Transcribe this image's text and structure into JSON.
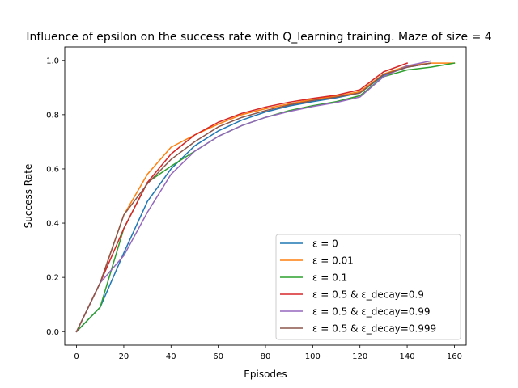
{
  "chart_data": {
    "type": "line",
    "title": "Influence of epsilon on the success rate with Q_learning training. Maze of size = 4",
    "xlabel": "Episodes",
    "ylabel": "Success Rate",
    "xlim": [
      -5,
      165
    ],
    "ylim": [
      -0.05,
      1.05
    ],
    "xticks": [
      0,
      20,
      40,
      60,
      80,
      100,
      120,
      140,
      160
    ],
    "yticks": [
      0.0,
      0.2,
      0.4,
      0.6,
      0.8,
      1.0
    ],
    "xtick_labels": [
      "0",
      "20",
      "40",
      "60",
      "80",
      "100",
      "120",
      "140",
      "160"
    ],
    "ytick_labels": [
      "0.0",
      "0.2",
      "0.4",
      "0.6",
      "0.8",
      "1.0"
    ],
    "grid": false,
    "legend_position": "lower-right",
    "series": [
      {
        "name": "ε = 0",
        "color": "#1f77b4",
        "x": [
          0,
          10,
          20,
          30,
          40,
          50,
          60,
          70,
          80,
          90,
          100,
          110,
          120,
          130,
          140,
          150
        ],
        "y": [
          0.0,
          0.09,
          0.29,
          0.48,
          0.6,
          0.685,
          0.74,
          0.78,
          0.81,
          0.832,
          0.848,
          0.862,
          0.88,
          0.945,
          0.975,
          0.99
        ]
      },
      {
        "name": "ε = 0.01",
        "color": "#ff7f0e",
        "x": [
          0,
          10,
          20,
          30,
          40,
          50,
          60,
          70,
          80,
          90,
          100,
          110,
          120,
          130,
          140,
          150,
          160
        ],
        "y": [
          0.0,
          0.18,
          0.43,
          0.58,
          0.68,
          0.725,
          0.765,
          0.8,
          0.822,
          0.84,
          0.856,
          0.868,
          0.885,
          0.95,
          0.98,
          0.99,
          0.99
        ]
      },
      {
        "name": "ε = 0.1",
        "color": "#2ca02c",
        "x": [
          0,
          10,
          20,
          30,
          40,
          50,
          60,
          70,
          80,
          90,
          100,
          110,
          120,
          130,
          140,
          150,
          160
        ],
        "y": [
          0.0,
          0.09,
          0.38,
          0.55,
          0.61,
          0.665,
          0.72,
          0.76,
          0.79,
          0.815,
          0.833,
          0.848,
          0.87,
          0.94,
          0.965,
          0.975,
          0.99
        ]
      },
      {
        "name": "ε = 0.5 & ε_decay=0.9",
        "color": "#d62728",
        "x": [
          0,
          10,
          20,
          30,
          40,
          50,
          60,
          70,
          80,
          90,
          100,
          110,
          120,
          130,
          140
        ],
        "y": [
          0.0,
          0.18,
          0.38,
          0.55,
          0.655,
          0.725,
          0.772,
          0.805,
          0.828,
          0.846,
          0.86,
          0.872,
          0.892,
          0.958,
          0.99
        ]
      },
      {
        "name": "ε = 0.5 & ε_decay=0.99",
        "color": "#9467bd",
        "x": [
          0,
          10,
          20,
          30,
          40,
          50,
          60,
          70,
          80,
          90,
          100,
          110,
          120,
          130,
          140,
          150
        ],
        "y": [
          0.0,
          0.18,
          0.28,
          0.44,
          0.58,
          0.665,
          0.72,
          0.76,
          0.79,
          0.812,
          0.83,
          0.845,
          0.865,
          0.94,
          0.98,
          0.998
        ]
      },
      {
        "name": "ε = 0.5 & ε_decay=0.999",
        "color": "#8c564b",
        "x": [
          0,
          10,
          20,
          30,
          40,
          50,
          60,
          70,
          80,
          90,
          100,
          110,
          120,
          130,
          140,
          150
        ],
        "y": [
          0.0,
          0.18,
          0.43,
          0.545,
          0.635,
          0.7,
          0.755,
          0.79,
          0.815,
          0.836,
          0.852,
          0.865,
          0.88,
          0.948,
          0.975,
          0.99
        ]
      }
    ]
  }
}
